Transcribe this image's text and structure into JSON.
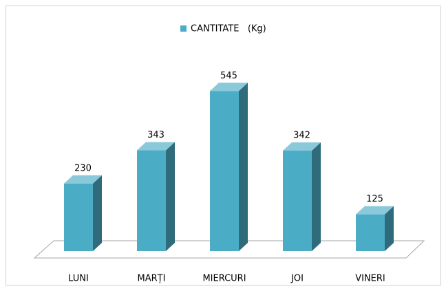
{
  "chart_data": {
    "type": "bar3d",
    "categories": [
      "LUNI",
      "MARȚI",
      "MIERCURI",
      "JOI",
      "VINERI"
    ],
    "series": [
      {
        "name": "CANTITATE   (Kg)",
        "color": "#4bacc6",
        "values": [
          230,
          343,
          545,
          342,
          125
        ]
      }
    ],
    "legend": "top"
  }
}
